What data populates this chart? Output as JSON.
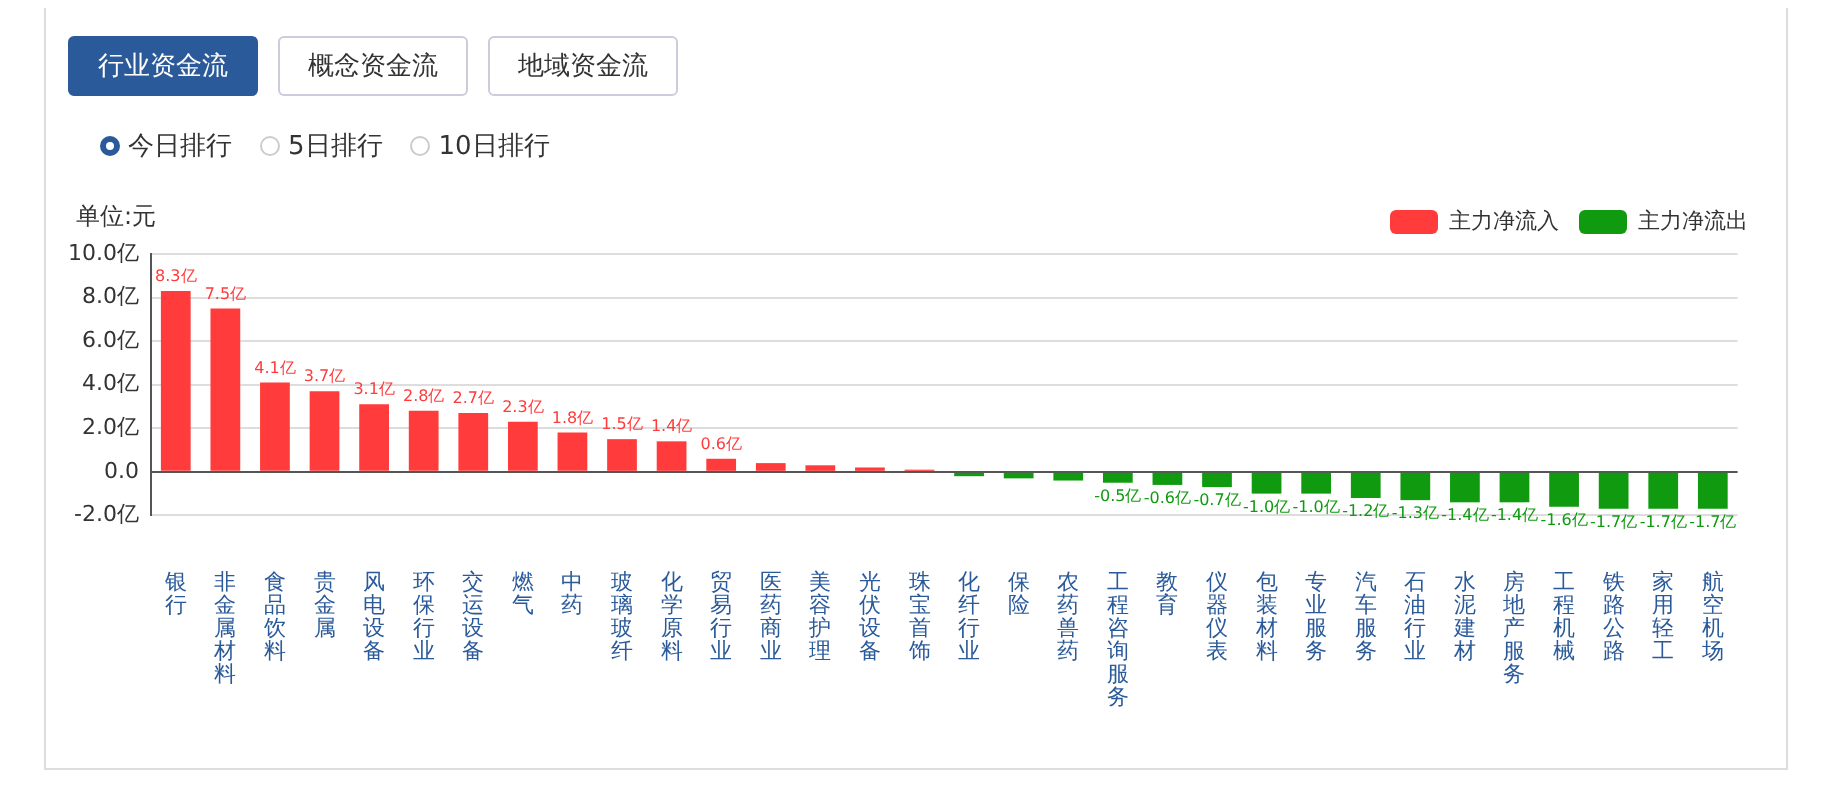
{
  "chart_data": {
    "type": "bar",
    "ylabel": "单位:元",
    "stacked": true,
    "legend": "top right",
    "grid": "y",
    "annotations": [
      "行业资金流",
      "概念资金流",
      "地域资金流",
      "今日排行",
      "5日排行",
      "10日排行"
    ],
    "categories": [
      "银行",
      "非金属材料",
      "食品饮料",
      "贵金属",
      "风电设备",
      "环保行业",
      "交运设备",
      "燃气",
      "中药",
      "玻璃玻纤",
      "化学原料",
      "贸易行业",
      "医药商业",
      "美容护理",
      "光伏设备",
      "珠宝首饰",
      "化纤行业",
      "保险",
      "农药兽药",
      "工程咨询服务",
      "教育",
      "仪器仪表",
      "包装材料",
      "专业服务",
      "汽车服务",
      "石油行业",
      "水泥建材",
      "房地产服务",
      "工程机械",
      "铁路公路",
      "家用轻工",
      "航空机场"
    ],
    "ylim": [
      -2,
      10
    ],
    "yticks": [
      {
        "value": -2,
        "label": "-2.0亿"
      },
      {
        "value": 0,
        "label": "0.0"
      },
      {
        "value": 2,
        "label": "2.0亿"
      },
      {
        "value": 4,
        "label": "4.0亿"
      },
      {
        "value": 6,
        "label": "6.0亿"
      },
      {
        "value": 8,
        "label": "8.0亿"
      },
      {
        "value": 10,
        "label": "10.0亿"
      }
    ],
    "series": [
      {
        "name": "主力净流入",
        "color": "#ff3b3b",
        "values": [
          8.3,
          7.5,
          4.1,
          3.7,
          3.1,
          2.8,
          2.7,
          2.3,
          1.8,
          1.5,
          1.4,
          0.6,
          0.4,
          0.3,
          0.2,
          0.1,
          null,
          null,
          null,
          null,
          null,
          null,
          null,
          null,
          null,
          null,
          null,
          null,
          null,
          null,
          null,
          null
        ],
        "value_labels": [
          "8.3亿",
          "7.5亿",
          "4.1亿",
          "3.7亿",
          "3.1亿",
          "2.8亿",
          "2.7亿",
          "2.3亿",
          "1.8亿",
          "1.5亿",
          "1.4亿",
          "0.6亿",
          null,
          null,
          null,
          null,
          null,
          null,
          null,
          null,
          null,
          null,
          null,
          null,
          null,
          null,
          null,
          null,
          null,
          null,
          null,
          null
        ]
      },
      {
        "name": "主力净流出",
        "color": "#0f9a0f",
        "values": [
          null,
          null,
          null,
          null,
          null,
          null,
          null,
          null,
          null,
          null,
          null,
          null,
          null,
          null,
          null,
          null,
          -0.2,
          -0.3,
          -0.4,
          -0.5,
          -0.6,
          -0.7,
          -1.0,
          -1.0,
          -1.2,
          -1.3,
          -1.4,
          -1.4,
          -1.6,
          -1.7,
          -1.7,
          -1.7
        ],
        "value_labels": [
          null,
          null,
          null,
          null,
          null,
          null,
          null,
          null,
          null,
          null,
          null,
          null,
          null,
          null,
          null,
          null,
          null,
          null,
          null,
          "-0.5亿",
          "-0.6亿",
          "-0.7亿",
          "-1.0亿",
          "-1.0亿",
          "-1.2亿",
          "-1.3亿",
          "-1.4亿",
          "-1.4亿",
          "-1.6亿",
          "-1.7亿",
          "-1.7亿",
          "-1.7亿"
        ]
      }
    ]
  }
}
